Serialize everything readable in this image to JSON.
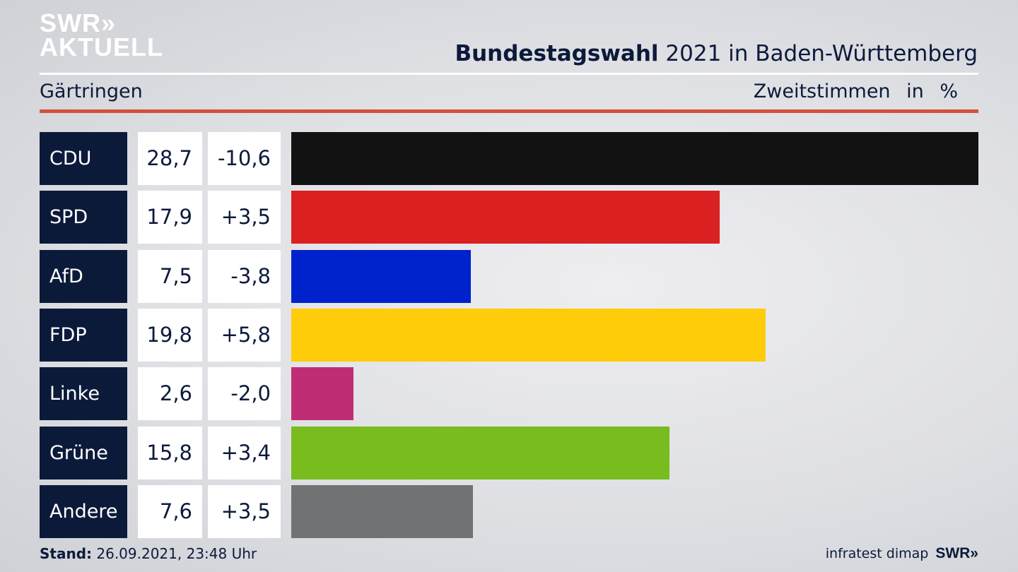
{
  "logo": {
    "line1": "SWR»",
    "line2": "AKTUELL"
  },
  "header": {
    "title_bold": "Bundestagswahl",
    "title_rest": " 2021 in Baden-Württemberg",
    "place": "Gärtringen",
    "measure": "Zweitstimmen",
    "unit": "in %"
  },
  "chart_data": {
    "type": "bar",
    "title": "Bundestagswahl 2021 in Baden-Württemberg – Gärtringen",
    "ylabel": "Zweitstimmen in %",
    "xlim": [
      0,
      28.7
    ],
    "categories": [
      "CDU",
      "SPD",
      "AfD",
      "FDP",
      "Linke",
      "Grüne",
      "Andere"
    ],
    "values": [
      28.7,
      17.9,
      7.5,
      19.8,
      2.6,
      15.8,
      7.6
    ],
    "value_labels": [
      "28,7",
      "17,9",
      "7,5",
      "19,8",
      "2,6",
      "15,8",
      "7,6"
    ],
    "change_labels": [
      "-10,6",
      "+3,5",
      "-3,8",
      "+5,8",
      "-2,0",
      "+3,4",
      "+3,5"
    ],
    "colors": [
      "#121212",
      "#da2020",
      "#0022cc",
      "#ffcc0a",
      "#bf2e74",
      "#78bc1e",
      "#717274"
    ]
  },
  "footer": {
    "stand_label": "Stand:",
    "stand_value": " 26.09.2021, 23:48 Uhr",
    "source": "infratest dimap",
    "brand": "SWR»"
  }
}
